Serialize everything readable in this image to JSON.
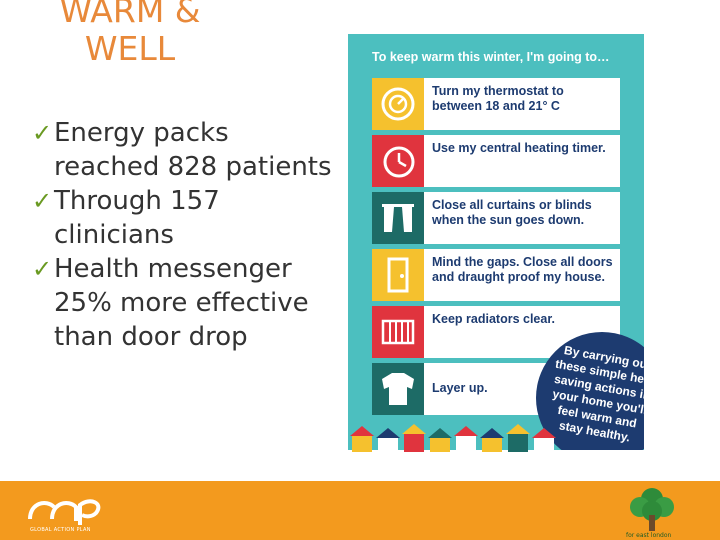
{
  "slide": {
    "title_lines": [
      "WARM &",
      "WELL"
    ],
    "bullets": [
      "Energy packs reached 828 patients",
      "Through 157 clinicians",
      "Health messenger 25% more effective than door drop"
    ]
  },
  "poster": {
    "heading": "To keep warm this winter, I'm going to…",
    "items": [
      {
        "text": "Turn my thermostat to between 18 and 21° C",
        "icon": "thermostat-icon",
        "color": "#f5c12e"
      },
      {
        "text": "Use my central heating timer.",
        "icon": "clock-icon",
        "color": "#e0343e"
      },
      {
        "text": "Close all curtains or blinds when the sun goes down.",
        "icon": "curtains-icon",
        "color": "#1d6b66"
      },
      {
        "text": "Mind the gaps. Close all doors and draught proof my house.",
        "icon": "door-icon",
        "color": "#f5c12e"
      },
      {
        "text": "Keep radiators clear.",
        "icon": "radiator-icon",
        "color": "#e0343e"
      },
      {
        "text": "Layer up.",
        "icon": "jumper-icon",
        "color": "#1d6b66"
      }
    ],
    "bubble": "By carrying out these simple heat saving actions in your home you'll feel warm and stay healthy.",
    "colors": {
      "background": "#4cbfbf",
      "navy": "#1d3b70"
    }
  },
  "footer": {
    "left_logo_text": "GLOBAL ACTION PLAN",
    "right_logo_text": "for east london",
    "color": "#f39a1e"
  }
}
